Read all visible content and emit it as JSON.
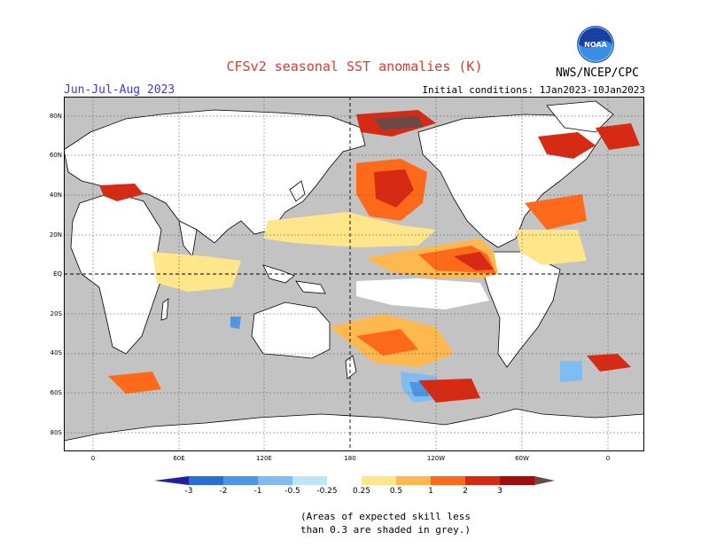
{
  "title": "CFSv2 seasonal SST anomalies (K)",
  "period": "Jun-Jul-Aug 2023",
  "initial_conditions": "Initial conditions: 1Jan2023-10Jan2023",
  "agency": "NWS/NCEP/CPC",
  "logo_text": "NOAA",
  "lat_labels": [
    "80N",
    "60N",
    "40N",
    "20N",
    "EQ",
    "20S",
    "40S",
    "60S",
    "80S"
  ],
  "lon_labels": [
    "0",
    "60E",
    "120E",
    "180",
    "120W",
    "60W",
    "0"
  ],
  "colorbar": {
    "labels": [
      "-3",
      "-2",
      "-1",
      "-0.5",
      "-0.25",
      "0.25",
      "0.5",
      "1",
      "2",
      "3"
    ],
    "colors": [
      "#1f1f9f",
      "#2a6dd8",
      "#4f95e6",
      "#7fbcf0",
      "#bde6f6",
      "#ffffff",
      "#ffe68a",
      "#ffb84d",
      "#ff6a1a",
      "#d62a14",
      "#a30c0c",
      "#6b4a44"
    ]
  },
  "note": [
    "(Areas of expected skill less",
    "than 0.3 are shaded in grey.)"
  ],
  "colors": {
    "title": "#e0392b",
    "period": "#3a3adf",
    "ocean_grey": "#c3c3c3",
    "land": "#ffffff"
  }
}
